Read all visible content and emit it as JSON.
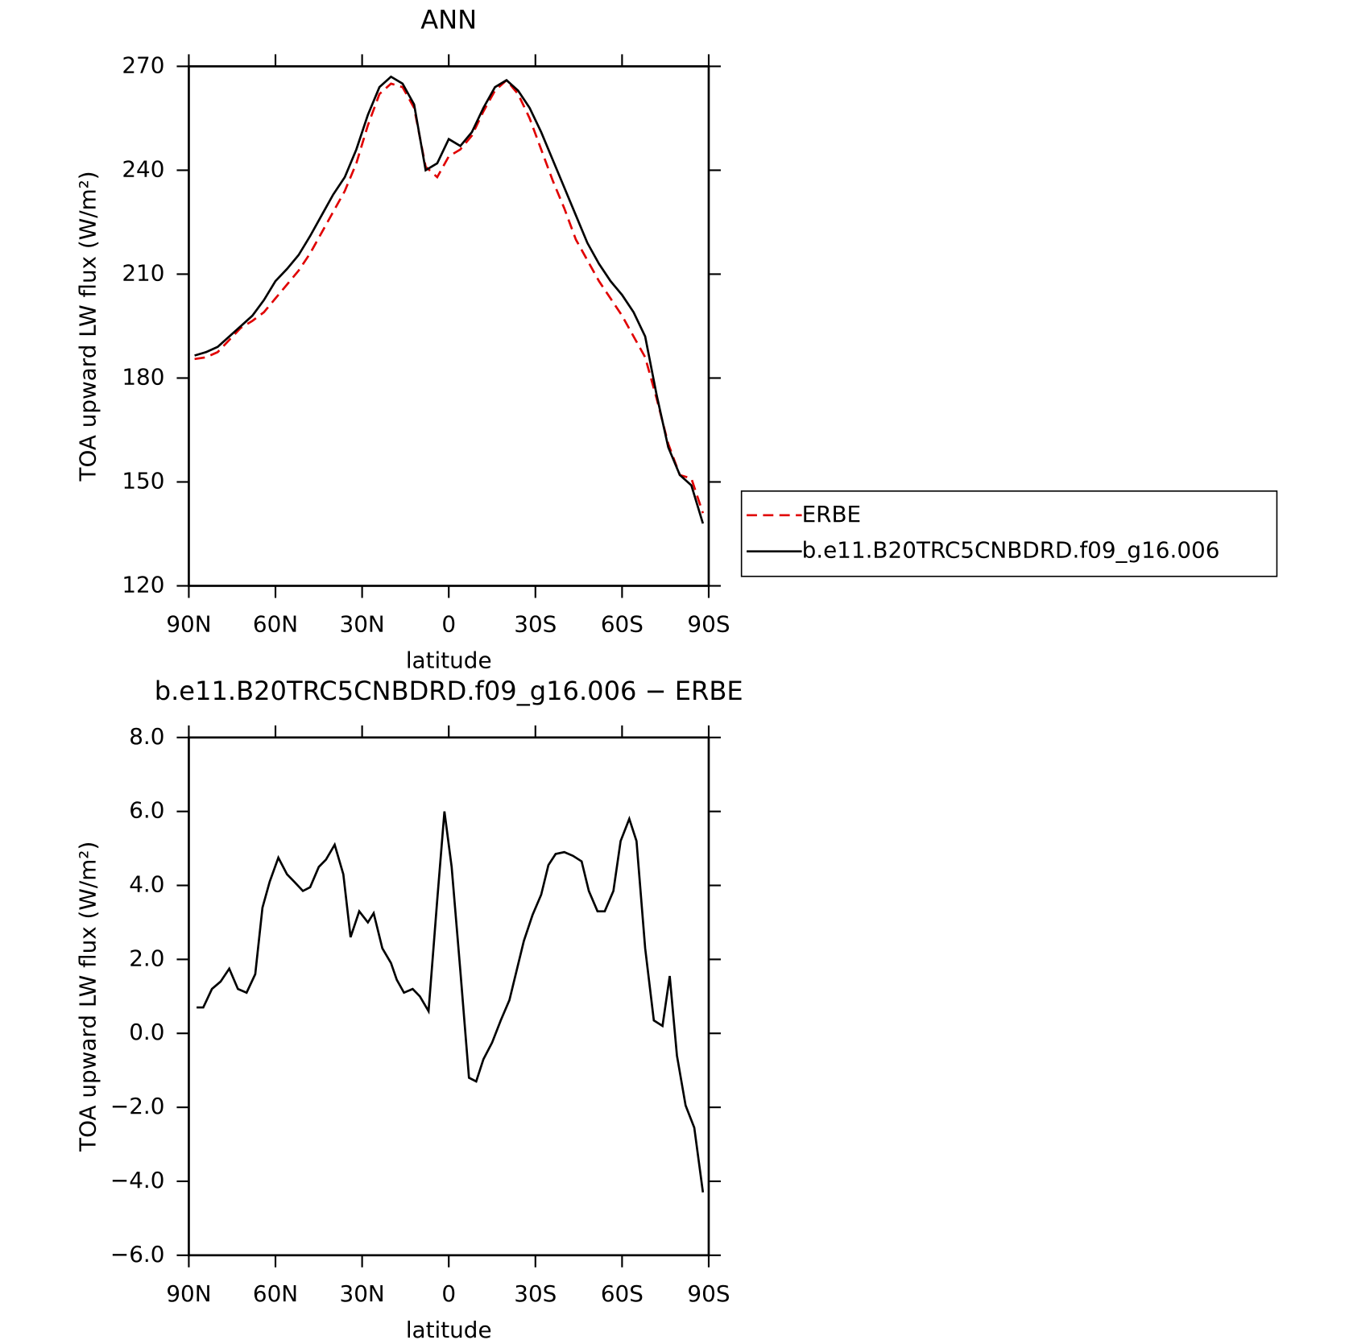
{
  "chart_data": [
    {
      "type": "line",
      "title": "ANN",
      "x_label": "latitude",
      "y_label": "TOA upward LW flux (W/m²)",
      "x": [
        88,
        84,
        80,
        76,
        72,
        68,
        64,
        60,
        56,
        52,
        48,
        44,
        40,
        36,
        32,
        28,
        24,
        20,
        16,
        12,
        8,
        4,
        0,
        -4,
        -8,
        -12,
        -16,
        -20,
        -24,
        -28,
        -32,
        -36,
        -40,
        -44,
        -48,
        -52,
        -56,
        -60,
        -64,
        -68,
        -72,
        -76,
        -80,
        -84,
        -88
      ],
      "series": [
        {
          "name": "ERBE",
          "color": "#e00000",
          "dash": true,
          "values": [
            185.5,
            186,
            187.5,
            191,
            194.5,
            196.5,
            199,
            203,
            207,
            211,
            216,
            222,
            228,
            234,
            242,
            253,
            262,
            265,
            264,
            258,
            241,
            238,
            244,
            246,
            250,
            257,
            263,
            266,
            262,
            255,
            246,
            237,
            229,
            220,
            214,
            208,
            203,
            198,
            192,
            186,
            174,
            161,
            152,
            151,
            141
          ]
        },
        {
          "name": "b.e11.B20TRC5CNBDRD.f09_g16.006",
          "color": "#000000",
          "dash": false,
          "values": [
            186.5,
            187.5,
            189,
            192,
            195,
            198,
            202.5,
            208,
            211.5,
            215.5,
            221,
            227,
            233,
            238,
            246,
            256,
            264,
            267,
            265,
            259,
            240,
            242,
            249,
            247,
            251,
            258,
            264,
            266,
            263,
            258,
            251,
            243,
            235,
            227,
            219,
            213,
            208,
            204,
            199,
            192,
            175,
            160,
            152,
            149,
            138
          ]
        }
      ],
      "xlim": [
        90,
        -90
      ],
      "xticks": [
        {
          "value": 90,
          "label": "90N"
        },
        {
          "value": 60,
          "label": "60N"
        },
        {
          "value": 30,
          "label": "30N"
        },
        0,
        {
          "value": -30,
          "label": "30S"
        },
        {
          "value": -60,
          "label": "60S"
        },
        {
          "value": -90,
          "label": "90S"
        }
      ],
      "ylim": [
        120,
        270
      ],
      "yticks": [
        120,
        150,
        180,
        210,
        240,
        270
      ],
      "legend": "right"
    },
    {
      "type": "line",
      "title": "b.e11.B20TRC5CNBDRD.f09_g16.006 − ERBE",
      "x_label": "latitude",
      "y_label": "TOA upward LW flux (W/m²)",
      "x": [
        87.3,
        85,
        82,
        79,
        76,
        73,
        70,
        67,
        64.5,
        62,
        59,
        56,
        53.5,
        50.5,
        48,
        45,
        42.5,
        39.5,
        36.5,
        34,
        31,
        28,
        26,
        23,
        20,
        18,
        15.5,
        12.5,
        10,
        7,
        4,
        1.5,
        -1,
        -4,
        -7,
        -9.5,
        -12,
        -15,
        -18,
        -21,
        -23.5,
        -26,
        -29,
        -32,
        -34.5,
        -37,
        -40,
        -43,
        -46,
        -48.5,
        -51.5,
        -54,
        -57,
        -59.5,
        -62.5,
        -65,
        -68,
        -71,
        -74,
        -76.5,
        -79,
        -82,
        -85,
        -88
      ],
      "values": [
        0.7,
        0.7,
        1.2,
        1.4,
        1.75,
        1.2,
        1.1,
        1.6,
        3.4,
        4.1,
        4.75,
        4.3,
        4.1,
        3.85,
        3.95,
        4.5,
        4.7,
        5.1,
        4.3,
        2.6,
        3.3,
        3.0,
        3.25,
        2.3,
        1.9,
        1.45,
        1.1,
        1.2,
        1.0,
        0.6,
        3.6,
        6.0,
        4.5,
        1.7,
        -1.2,
        -1.3,
        -0.7,
        -0.25,
        0.35,
        0.9,
        1.7,
        2.5,
        3.2,
        3.75,
        4.55,
        4.85,
        4.9,
        4.8,
        4.65,
        3.85,
        3.3,
        3.3,
        3.85,
        5.2,
        5.8,
        5.2,
        2.3,
        0.35,
        0.2,
        1.55,
        -0.6,
        -1.95,
        -2.55,
        -4.3
      ],
      "color": "#000000",
      "xlim": [
        90,
        -90
      ],
      "xticks": [
        {
          "value": 90,
          "label": "90N"
        },
        {
          "value": 60,
          "label": "60N"
        },
        {
          "value": 30,
          "label": "30N"
        },
        0,
        {
          "value": -30,
          "label": "30S"
        },
        {
          "value": -60,
          "label": "60S"
        },
        {
          "value": -90,
          "label": "90S"
        }
      ],
      "ylim": [
        -6,
        8
      ],
      "yticks": [
        {
          "value": -6,
          "label": "−6.0"
        },
        {
          "value": -4,
          "label": "−4.0"
        },
        {
          "value": -2,
          "label": "−2.0"
        },
        {
          "value": 0,
          "label": "0.0"
        },
        {
          "value": 2,
          "label": "2.0"
        },
        {
          "value": 4,
          "label": "4.0"
        },
        {
          "value": 6,
          "label": "6.0"
        },
        {
          "value": 8,
          "label": "8.0"
        }
      ]
    }
  ]
}
